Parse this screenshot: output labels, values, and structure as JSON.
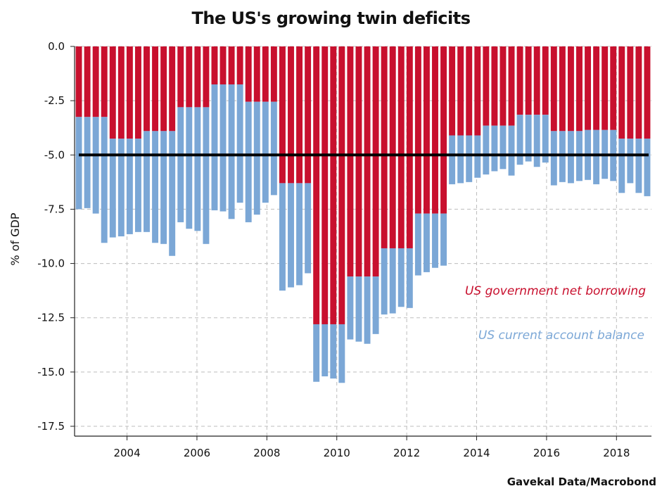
{
  "chart_data": {
    "type": "bar",
    "title": "The US's growing twin deficits",
    "ylabel": "% of GDP",
    "ylim": [
      -17.5,
      0
    ],
    "y_ticks": [
      "0.0",
      "-2.5",
      "-5.0",
      "-7.5",
      "-10.0",
      "-12.5",
      "-15.0",
      "-17.5"
    ],
    "x_ticks": [
      "2004",
      "2006",
      "2008",
      "2010",
      "2012",
      "2014",
      "2016",
      "2018"
    ],
    "grid": true,
    "source": "Gavekal Data/Macrobond",
    "reference_line": {
      "value": -5.0
    },
    "colors": {
      "government": "#c8102e",
      "current_account": "#7ba7d6",
      "reference": "#000000",
      "grid": "#bdbdbd"
    },
    "series": [
      {
        "name": "US government net borrowing",
        "role": "top",
        "values": [
          -3.25,
          -3.25,
          -3.25,
          -3.25,
          -4.25,
          -4.25,
          -4.25,
          -4.25,
          -3.9,
          -3.9,
          -3.9,
          -3.9,
          -2.8,
          -2.8,
          -2.8,
          -2.8,
          -1.75,
          -1.75,
          -1.75,
          -1.75,
          -2.55,
          -2.55,
          -2.55,
          -2.55,
          -6.3,
          -6.3,
          -6.3,
          -6.3,
          -12.8,
          -12.8,
          -12.8,
          -12.8,
          -10.6,
          -10.6,
          -10.6,
          -10.6,
          -9.3,
          -9.3,
          -9.3,
          -9.3,
          -7.7,
          -7.7,
          -7.7,
          -7.7,
          -4.1,
          -4.1,
          -4.1,
          -4.1,
          -3.65,
          -3.65,
          -3.65,
          -3.65,
          -3.15,
          -3.15,
          -3.15,
          -3.15,
          -3.9,
          -3.9,
          -3.9,
          -3.9,
          -3.85,
          -3.85,
          -3.85,
          -3.85,
          -4.25,
          -4.25,
          -4.25,
          -4.25
        ]
      },
      {
        "name": "US current account balance",
        "role": "bottom",
        "values": [
          -7.5,
          -7.45,
          -7.7,
          -9.05,
          -8.8,
          -8.75,
          -8.65,
          -8.55,
          -8.55,
          -9.05,
          -9.1,
          -9.65,
          -8.1,
          -8.4,
          -8.5,
          -9.1,
          -7.55,
          -7.6,
          -7.95,
          -7.2,
          -8.1,
          -7.75,
          -7.2,
          -6.85,
          -11.25,
          -11.1,
          -11.0,
          -10.45,
          -15.45,
          -15.2,
          -15.3,
          -15.5,
          -13.5,
          -13.6,
          -13.7,
          -13.25,
          -12.35,
          -12.3,
          -12.0,
          -12.05,
          -10.55,
          -10.4,
          -10.2,
          -10.1,
          -6.35,
          -6.3,
          -6.25,
          -6.05,
          -5.9,
          -5.75,
          -5.65,
          -5.95,
          -5.45,
          -5.3,
          -5.55,
          -5.35,
          -6.4,
          -6.25,
          -6.3,
          -6.2,
          -6.15,
          -6.35,
          -6.1,
          -6.2,
          -6.75,
          -6.3,
          -6.75,
          -6.9
        ]
      }
    ],
    "legend": [
      {
        "label": "US government net borrowing",
        "color": "#c8102e"
      },
      {
        "label": "US current account balance",
        "color": "#7ba7d6"
      }
    ]
  }
}
